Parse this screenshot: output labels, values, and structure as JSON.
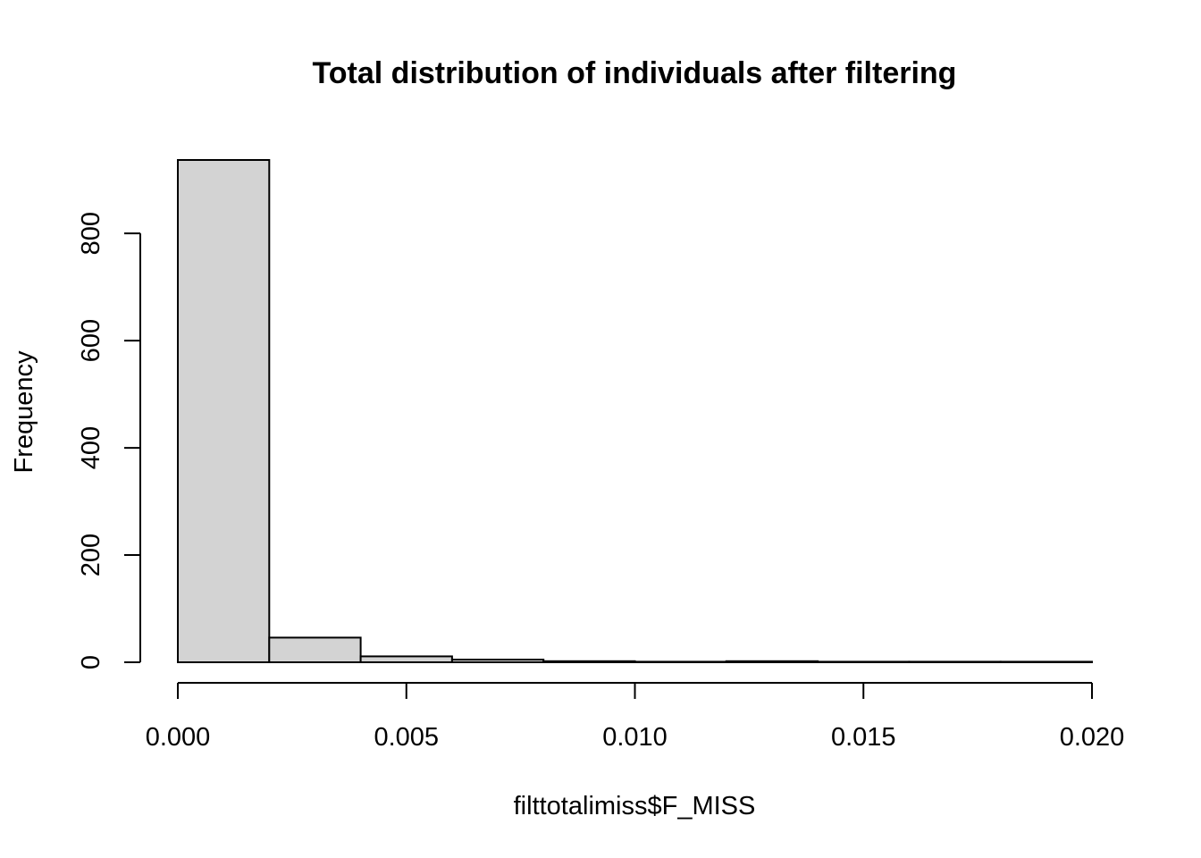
{
  "chart_data": {
    "type": "bar",
    "subtype": "histogram",
    "title": "Total distribution of individuals after filtering",
    "xlabel": "filttotalimiss$F_MISS",
    "ylabel": "Frequency",
    "bin_edges": [
      0.0,
      0.002,
      0.004,
      0.006,
      0.008,
      0.01,
      0.012,
      0.014,
      0.016,
      0.018,
      0.02
    ],
    "values": [
      937,
      46,
      11,
      5,
      2,
      1,
      2,
      1,
      1,
      1
    ],
    "xlim": [
      0.0,
      0.02
    ],
    "ylim": [
      0,
      937
    ],
    "x_ticks": [
      0.0,
      0.005,
      0.01,
      0.015,
      0.02
    ],
    "x_tick_labels": [
      "0.000",
      "0.005",
      "0.010",
      "0.015",
      "0.020"
    ],
    "y_ticks": [
      0,
      200,
      400,
      600,
      800
    ],
    "y_tick_labels": [
      "0",
      "200",
      "400",
      "600",
      "800"
    ],
    "bar_color": "#d3d3d3",
    "bar_border_color": "#000000",
    "grid": false,
    "legend": "none"
  }
}
